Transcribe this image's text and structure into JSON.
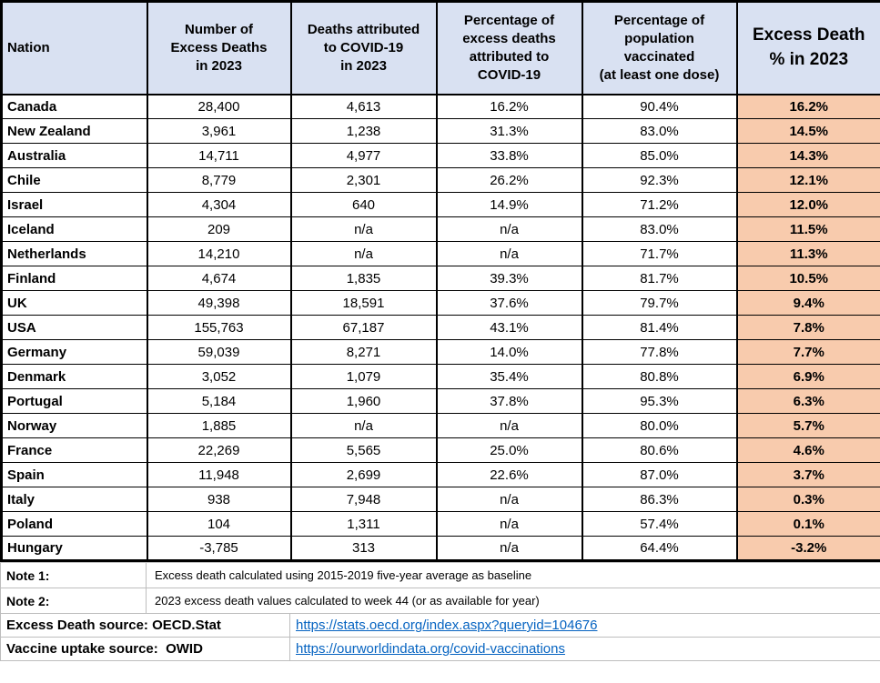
{
  "table": {
    "headers": [
      "Nation",
      "Number of\nExcess Deaths\nin 2023",
      "Deaths attributed\nto COVID-19\nin 2023",
      "Percentage of\nexcess deaths\nattributed to\nCOVID-19",
      "Percentage of\npopulation\nvaccinated\n(at least one dose)",
      "Excess Death\n% in 2023"
    ],
    "rows": [
      {
        "nation": "Canada",
        "excess_deaths": "28,400",
        "covid_deaths": "4,613",
        "pct_excess_covid": "16.2%",
        "pct_vaccinated": "90.4%",
        "excess_death_pct": "16.2%"
      },
      {
        "nation": "New Zealand",
        "excess_deaths": "3,961",
        "covid_deaths": "1,238",
        "pct_excess_covid": "31.3%",
        "pct_vaccinated": "83.0%",
        "excess_death_pct": "14.5%"
      },
      {
        "nation": "Australia",
        "excess_deaths": "14,711",
        "covid_deaths": "4,977",
        "pct_excess_covid": "33.8%",
        "pct_vaccinated": "85.0%",
        "excess_death_pct": "14.3%"
      },
      {
        "nation": "Chile",
        "excess_deaths": "8,779",
        "covid_deaths": "2,301",
        "pct_excess_covid": "26.2%",
        "pct_vaccinated": "92.3%",
        "excess_death_pct": "12.1%"
      },
      {
        "nation": "Israel",
        "excess_deaths": "4,304",
        "covid_deaths": "640",
        "pct_excess_covid": "14.9%",
        "pct_vaccinated": "71.2%",
        "excess_death_pct": "12.0%"
      },
      {
        "nation": "Iceland",
        "excess_deaths": "209",
        "covid_deaths": "n/a",
        "pct_excess_covid": "n/a",
        "pct_vaccinated": "83.0%",
        "excess_death_pct": "11.5%"
      },
      {
        "nation": "Netherlands",
        "excess_deaths": "14,210",
        "covid_deaths": "n/a",
        "pct_excess_covid": "n/a",
        "pct_vaccinated": "71.7%",
        "excess_death_pct": "11.3%"
      },
      {
        "nation": "Finland",
        "excess_deaths": "4,674",
        "covid_deaths": "1,835",
        "pct_excess_covid": "39.3%",
        "pct_vaccinated": "81.7%",
        "excess_death_pct": "10.5%"
      },
      {
        "nation": "UK",
        "excess_deaths": "49,398",
        "covid_deaths": "18,591",
        "pct_excess_covid": "37.6%",
        "pct_vaccinated": "79.7%",
        "excess_death_pct": "9.4%"
      },
      {
        "nation": "USA",
        "excess_deaths": "155,763",
        "covid_deaths": "67,187",
        "pct_excess_covid": "43.1%",
        "pct_vaccinated": "81.4%",
        "excess_death_pct": "7.8%"
      },
      {
        "nation": "Germany",
        "excess_deaths": "59,039",
        "covid_deaths": "8,271",
        "pct_excess_covid": "14.0%",
        "pct_vaccinated": "77.8%",
        "excess_death_pct": "7.7%"
      },
      {
        "nation": "Denmark",
        "excess_deaths": "3,052",
        "covid_deaths": "1,079",
        "pct_excess_covid": "35.4%",
        "pct_vaccinated": "80.8%",
        "excess_death_pct": "6.9%"
      },
      {
        "nation": "Portugal",
        "excess_deaths": "5,184",
        "covid_deaths": "1,960",
        "pct_excess_covid": "37.8%",
        "pct_vaccinated": "95.3%",
        "excess_death_pct": "6.3%"
      },
      {
        "nation": "Norway",
        "excess_deaths": "1,885",
        "covid_deaths": "n/a",
        "pct_excess_covid": "n/a",
        "pct_vaccinated": "80.0%",
        "excess_death_pct": "5.7%"
      },
      {
        "nation": "France",
        "excess_deaths": "22,269",
        "covid_deaths": "5,565",
        "pct_excess_covid": "25.0%",
        "pct_vaccinated": "80.6%",
        "excess_death_pct": "4.6%"
      },
      {
        "nation": "Spain",
        "excess_deaths": "11,948",
        "covid_deaths": "2,699",
        "pct_excess_covid": "22.6%",
        "pct_vaccinated": "87.0%",
        "excess_death_pct": "3.7%"
      },
      {
        "nation": "Italy",
        "excess_deaths": "938",
        "covid_deaths": "7,948",
        "pct_excess_covid": "n/a",
        "pct_vaccinated": "86.3%",
        "excess_death_pct": "0.3%"
      },
      {
        "nation": "Poland",
        "excess_deaths": "104",
        "covid_deaths": "1,311",
        "pct_excess_covid": "n/a",
        "pct_vaccinated": "57.4%",
        "excess_death_pct": "0.1%"
      },
      {
        "nation": "Hungary",
        "excess_deaths": "-3,785",
        "covid_deaths": "313",
        "pct_excess_covid": "n/a",
        "pct_vaccinated": "64.4%",
        "excess_death_pct": "-3.2%"
      }
    ]
  },
  "notes": [
    {
      "label": "Note 1:",
      "text": "Excess death calculated using 2015-2019 five-year average as baseline"
    },
    {
      "label": "Note 2:",
      "text": "2023 excess death values calculated to week 44 (or as available for year)"
    }
  ],
  "sources": [
    {
      "label": "Excess Death source: OECD.Stat",
      "url": "https://stats.oecd.org/index.aspx?queryid=104676"
    },
    {
      "label": "Vaccine uptake source:  OWID",
      "url": "https://ourworldindata.org/covid-vaccinations"
    }
  ],
  "colors": {
    "header_bg": "#d9e1f2",
    "highlight_bg": "#f8cbad",
    "link": "#0563c1",
    "table_border": "#000000",
    "notes_grid": "#bdbdbd"
  }
}
